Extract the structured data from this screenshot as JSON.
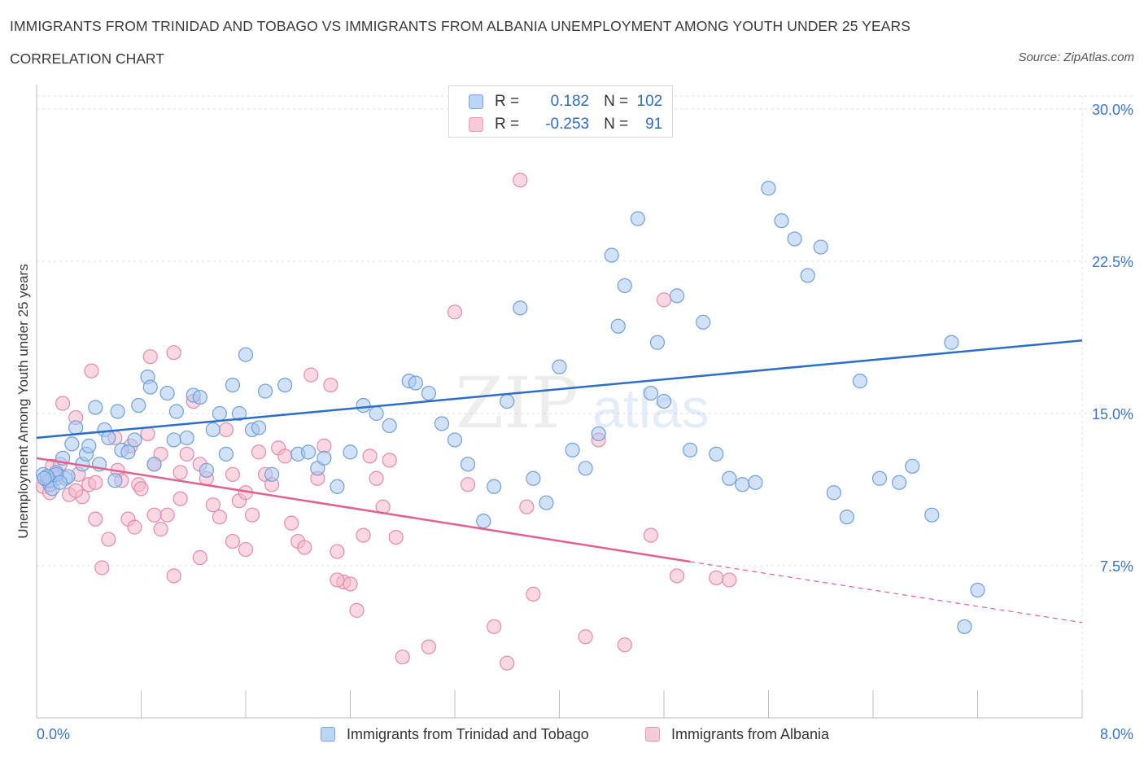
{
  "header": {
    "title": "IMMIGRANTS FROM TRINIDAD AND TOBAGO VS IMMIGRANTS FROM ALBANIA UNEMPLOYMENT AMONG YOUTH UNDER 25 YEARS",
    "subtitle": "CORRELATION CHART",
    "source": "Source: ZipAtlas.com"
  },
  "legend": {
    "r_label": "R =",
    "n_label": "N =",
    "series1_r": "0.182",
    "series1_n": "102",
    "series2_r": "-0.253",
    "series2_n": "91"
  },
  "watermark": {
    "zip": "ZIP",
    "atlas": "atlas"
  },
  "colors": {
    "series1_fill": "#a9c8f2",
    "series1_stroke": "#6f9fdc",
    "series1_line": "#2b6ec9",
    "series2_fill": "#f4b8cb",
    "series2_stroke": "#e58aa8",
    "series2_line": "#e0628b",
    "axis_value": "#3a76c9"
  },
  "chart_data": {
    "type": "scatter",
    "title": "IMMIGRANTS FROM TRINIDAD AND TOBAGO VS IMMIGRANTS FROM ALBANIA UNEMPLOYMENT AMONG YOUTH UNDER 25 YEARS",
    "xlabel": "",
    "ylabel": "Unemployment Among Youth under 25 years",
    "xlim": [
      0,
      8
    ],
    "ylim": [
      0,
      30
    ],
    "x_tick_labels": [
      "0.0%",
      "8.0%"
    ],
    "y_ticks": [
      7.5,
      15,
      22.5,
      30
    ],
    "y_tick_labels": [
      "7.5%",
      "15.0%",
      "22.5%",
      "30.0%"
    ],
    "grid": true,
    "legend_position": "top-center",
    "series": [
      {
        "name": "Immigrants from Trinidad and Tobago",
        "R": 0.182,
        "N": 102,
        "trend": {
          "x": [
            0,
            8
          ],
          "y": [
            13.8,
            18.6
          ]
        },
        "points": [
          [
            0.05,
            12.0
          ],
          [
            0.1,
            11.5
          ],
          [
            0.15,
            12.1
          ],
          [
            0.2,
            12.8
          ],
          [
            0.22,
            11.8
          ],
          [
            0.24,
            11.9
          ],
          [
            0.27,
            13.5
          ],
          [
            0.3,
            14.3
          ],
          [
            0.35,
            12.5
          ],
          [
            0.38,
            13.0
          ],
          [
            0.4,
            13.4
          ],
          [
            0.45,
            15.3
          ],
          [
            0.48,
            12.5
          ],
          [
            0.52,
            14.2
          ],
          [
            0.55,
            13.8
          ],
          [
            0.6,
            11.7
          ],
          [
            0.62,
            15.1
          ],
          [
            0.65,
            13.2
          ],
          [
            0.7,
            13.1
          ],
          [
            0.75,
            13.7
          ],
          [
            0.78,
            15.4
          ],
          [
            0.85,
            16.8
          ],
          [
            0.87,
            16.3
          ],
          [
            0.9,
            12.5
          ],
          [
            1.0,
            16.0
          ],
          [
            1.05,
            13.7
          ],
          [
            1.07,
            15.1
          ],
          [
            1.15,
            13.8
          ],
          [
            1.2,
            15.9
          ],
          [
            1.25,
            15.8
          ],
          [
            1.3,
            12.2
          ],
          [
            1.35,
            14.2
          ],
          [
            1.4,
            15.0
          ],
          [
            1.45,
            13.0
          ],
          [
            1.5,
            16.4
          ],
          [
            1.55,
            15.0
          ],
          [
            1.6,
            17.9
          ],
          [
            1.65,
            14.2
          ],
          [
            1.7,
            14.3
          ],
          [
            1.75,
            16.1
          ],
          [
            1.8,
            12.0
          ],
          [
            1.9,
            16.4
          ],
          [
            2.0,
            13.0
          ],
          [
            2.08,
            13.1
          ],
          [
            2.15,
            12.3
          ],
          [
            2.2,
            12.8
          ],
          [
            2.3,
            11.4
          ],
          [
            2.4,
            13.1
          ],
          [
            2.5,
            15.4
          ],
          [
            2.6,
            15.0
          ],
          [
            2.7,
            14.4
          ],
          [
            2.85,
            16.6
          ],
          [
            2.9,
            16.5
          ],
          [
            3.0,
            16.0
          ],
          [
            3.1,
            14.5
          ],
          [
            3.2,
            13.7
          ],
          [
            3.3,
            12.5
          ],
          [
            3.42,
            9.7
          ],
          [
            3.5,
            11.4
          ],
          [
            3.6,
            15.6
          ],
          [
            3.7,
            20.2
          ],
          [
            3.8,
            11.8
          ],
          [
            3.9,
            10.6
          ],
          [
            4.0,
            17.3
          ],
          [
            4.1,
            13.2
          ],
          [
            4.2,
            12.3
          ],
          [
            4.3,
            14.0
          ],
          [
            4.4,
            22.8
          ],
          [
            4.45,
            19.3
          ],
          [
            4.5,
            21.3
          ],
          [
            4.6,
            24.6
          ],
          [
            4.7,
            16.0
          ],
          [
            4.75,
            18.5
          ],
          [
            4.8,
            15.6
          ],
          [
            4.9,
            20.8
          ],
          [
            5.0,
            13.2
          ],
          [
            5.1,
            19.5
          ],
          [
            5.2,
            13.0
          ],
          [
            5.3,
            11.8
          ],
          [
            5.4,
            11.5
          ],
          [
            5.5,
            11.6
          ],
          [
            5.6,
            26.1
          ],
          [
            5.7,
            24.5
          ],
          [
            5.8,
            23.6
          ],
          [
            5.9,
            21.8
          ],
          [
            6.0,
            23.2
          ],
          [
            6.1,
            11.1
          ],
          [
            6.2,
            9.9
          ],
          [
            6.3,
            16.6
          ],
          [
            6.45,
            11.8
          ],
          [
            6.6,
            11.6
          ],
          [
            6.7,
            12.4
          ],
          [
            6.85,
            10.0
          ],
          [
            7.0,
            18.5
          ],
          [
            7.1,
            4.5
          ],
          [
            7.2,
            6.3
          ],
          [
            0.15,
            12.0
          ],
          [
            0.1,
            11.7
          ],
          [
            0.08,
            11.9
          ],
          [
            0.12,
            11.3
          ],
          [
            0.18,
            11.6
          ],
          [
            0.06,
            11.8
          ]
        ]
      },
      {
        "name": "Immigrants from Albania",
        "R": -0.253,
        "N": 91,
        "trend": {
          "x": [
            0,
            5.0
          ],
          "y": [
            12.8,
            7.7
          ]
        },
        "trend_dashed": {
          "x": [
            5.0,
            8
          ],
          "y": [
            7.7,
            4.7
          ]
        },
        "points": [
          [
            0.05,
            11.4
          ],
          [
            0.08,
            11.7
          ],
          [
            0.1,
            11.1
          ],
          [
            0.12,
            12.4
          ],
          [
            0.15,
            11.8
          ],
          [
            0.18,
            12.5
          ],
          [
            0.2,
            15.5
          ],
          [
            0.25,
            11.0
          ],
          [
            0.3,
            14.8
          ],
          [
            0.32,
            12.0
          ],
          [
            0.35,
            10.9
          ],
          [
            0.4,
            11.5
          ],
          [
            0.42,
            17.1
          ],
          [
            0.45,
            9.8
          ],
          [
            0.5,
            7.4
          ],
          [
            0.55,
            8.8
          ],
          [
            0.6,
            13.8
          ],
          [
            0.62,
            12.2
          ],
          [
            0.65,
            11.7
          ],
          [
            0.7,
            9.8
          ],
          [
            0.72,
            13.4
          ],
          [
            0.75,
            9.4
          ],
          [
            0.78,
            11.5
          ],
          [
            0.8,
            11.3
          ],
          [
            0.85,
            14.0
          ],
          [
            0.87,
            17.8
          ],
          [
            0.9,
            12.5
          ],
          [
            0.95,
            13.0
          ],
          [
            1.0,
            10.0
          ],
          [
            1.05,
            18.0
          ],
          [
            1.1,
            12.1
          ],
          [
            1.15,
            13.0
          ],
          [
            1.2,
            15.6
          ],
          [
            1.25,
            12.5
          ],
          [
            1.3,
            11.8
          ],
          [
            1.35,
            10.5
          ],
          [
            1.4,
            9.9
          ],
          [
            1.45,
            14.2
          ],
          [
            1.5,
            12.0
          ],
          [
            1.55,
            10.7
          ],
          [
            1.6,
            11.1
          ],
          [
            1.65,
            10.0
          ],
          [
            1.7,
            13.1
          ],
          [
            1.75,
            12.0
          ],
          [
            1.8,
            11.5
          ],
          [
            1.85,
            13.3
          ],
          [
            1.9,
            12.9
          ],
          [
            1.95,
            9.6
          ],
          [
            2.0,
            8.7
          ],
          [
            2.05,
            8.4
          ],
          [
            2.1,
            16.9
          ],
          [
            2.15,
            11.8
          ],
          [
            2.2,
            13.4
          ],
          [
            2.25,
            16.4
          ],
          [
            2.3,
            8.2
          ],
          [
            2.35,
            6.7
          ],
          [
            2.4,
            6.6
          ],
          [
            2.45,
            5.3
          ],
          [
            2.5,
            9.0
          ],
          [
            2.55,
            12.9
          ],
          [
            2.6,
            11.8
          ],
          [
            2.65,
            10.4
          ],
          [
            2.7,
            12.7
          ],
          [
            2.75,
            8.9
          ],
          [
            2.8,
            3.0
          ],
          [
            3.0,
            3.5
          ],
          [
            3.2,
            20.0
          ],
          [
            3.3,
            11.5
          ],
          [
            3.5,
            4.5
          ],
          [
            3.6,
            2.7
          ],
          [
            3.7,
            26.5
          ],
          [
            3.75,
            10.4
          ],
          [
            3.8,
            6.1
          ],
          [
            4.2,
            4.0
          ],
          [
            4.3,
            13.7
          ],
          [
            4.5,
            3.6
          ],
          [
            4.7,
            9.0
          ],
          [
            4.8,
            20.6
          ],
          [
            4.9,
            7.0
          ],
          [
            5.2,
            6.9
          ],
          [
            5.3,
            6.8
          ],
          [
            1.05,
            7.0
          ],
          [
            1.25,
            7.9
          ],
          [
            1.5,
            8.7
          ],
          [
            1.6,
            8.3
          ],
          [
            2.3,
            6.8
          ],
          [
            0.9,
            10.0
          ],
          [
            0.95,
            9.3
          ],
          [
            1.1,
            10.8
          ],
          [
            0.3,
            11.2
          ],
          [
            0.45,
            11.6
          ]
        ]
      }
    ]
  },
  "axes_text": {
    "x_left": "0.0%",
    "x_right": "8.0%",
    "y_ticks": [
      "7.5%",
      "15.0%",
      "22.5%",
      "30.0%"
    ],
    "ylabel": "Unemployment Among Youth under 25 years"
  },
  "bottom_legend": {
    "series1": "Immigrants from Trinidad and Tobago",
    "series2": "Immigrants from Albania"
  }
}
